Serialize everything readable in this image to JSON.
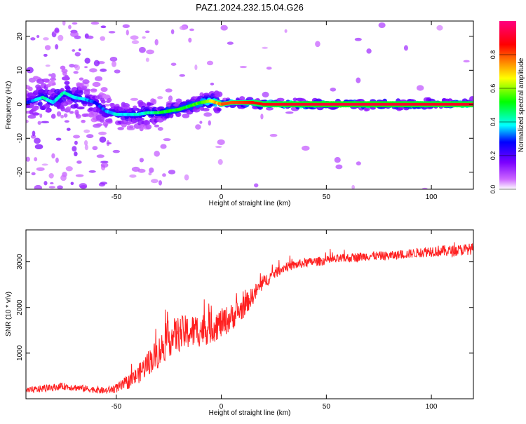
{
  "page": {
    "title": "PAZ1.2024.232.15.04.G26"
  },
  "chart_data": [
    {
      "type": "heatmap",
      "title": "PAZ1.2024.232.15.04.G26",
      "xlabel": "Height of straight line (km)",
      "ylabel": "Frequency (Hz)",
      "xlim": [
        -93,
        120
      ],
      "ylim": [
        -25,
        24.5
      ],
      "x_ticks": [
        -50,
        0,
        50,
        100
      ],
      "y_ticks": [
        -20,
        -10,
        0,
        10,
        20
      ],
      "grid": false,
      "colorbar": {
        "label": "Normalized spectral amplitude",
        "range": [
          0,
          1
        ],
        "ticks": [
          0.0,
          0.2,
          0.4,
          0.6,
          0.8
        ],
        "colors": [
          "#ffffff",
          "#cc66ff",
          "#7a00ff",
          "#0000ff",
          "#00ffff",
          "#00ff00",
          "#ffff00",
          "#ff8000",
          "#ff0000",
          "#ff0080"
        ]
      },
      "ridge": [
        {
          "x": -90,
          "f": 1.0,
          "a": 0.35
        },
        {
          "x": -85,
          "f": 2.0,
          "a": 0.45
        },
        {
          "x": -80,
          "f": 0.5,
          "a": 0.4
        },
        {
          "x": -75,
          "f": 3.5,
          "a": 0.45
        },
        {
          "x": -70,
          "f": 2.0,
          "a": 0.42
        },
        {
          "x": -65,
          "f": 1.5,
          "a": 0.4
        },
        {
          "x": -60,
          "f": 0.5,
          "a": 0.3
        },
        {
          "x": -55,
          "f": -2.0,
          "a": 0.35
        },
        {
          "x": -50,
          "f": -3.0,
          "a": 0.42
        },
        {
          "x": -45,
          "f": -3.0,
          "a": 0.42
        },
        {
          "x": -40,
          "f": -3.0,
          "a": 0.42
        },
        {
          "x": -35,
          "f": -2.5,
          "a": 0.45
        },
        {
          "x": -30,
          "f": -2.5,
          "a": 0.5
        },
        {
          "x": -25,
          "f": -2.0,
          "a": 0.55
        },
        {
          "x": -20,
          "f": -1.5,
          "a": 0.55
        },
        {
          "x": -15,
          "f": -0.5,
          "a": 0.55
        },
        {
          "x": -10,
          "f": 0.5,
          "a": 0.6
        },
        {
          "x": -5,
          "f": 1.0,
          "a": 0.7
        },
        {
          "x": 0,
          "f": 0.0,
          "a": 0.8
        },
        {
          "x": 5,
          "f": 0.5,
          "a": 0.8
        },
        {
          "x": 10,
          "f": 0.5,
          "a": 0.82
        },
        {
          "x": 15,
          "f": 0.5,
          "a": 0.85
        },
        {
          "x": 20,
          "f": 0.0,
          "a": 0.88
        },
        {
          "x": 30,
          "f": 0.0,
          "a": 0.9
        },
        {
          "x": 50,
          "f": 0.0,
          "a": 0.92
        },
        {
          "x": 75,
          "f": 0.0,
          "a": 0.92
        },
        {
          "x": 100,
          "f": 0.0,
          "a": 0.9
        },
        {
          "x": 120,
          "f": 0.0,
          "a": 0.9
        }
      ]
    },
    {
      "type": "line",
      "xlabel": "Height of straight line (km)",
      "ylabel": "SNR (10 * v/v)",
      "xlim": [
        -93,
        120
      ],
      "ylim": [
        0,
        3700
      ],
      "x_ticks": [
        -50,
        0,
        50,
        100
      ],
      "y_ticks": [
        1000,
        2000,
        3000
      ],
      "grid": false,
      "color": "#ff0000",
      "series": [
        {
          "x": [
            -93,
            -85,
            -75,
            -65,
            -55,
            -50,
            -45,
            -40,
            -35,
            -30,
            -25,
            -20,
            -15,
            -10,
            -5,
            0,
            5,
            10,
            15,
            20,
            25,
            30,
            40,
            50,
            60,
            70,
            80,
            90,
            100,
            110,
            120
          ],
          "values": [
            150,
            200,
            250,
            200,
            150,
            200,
            300,
            450,
            700,
            900,
            1200,
            1300,
            1350,
            1400,
            1450,
            1550,
            1700,
            1900,
            2200,
            2500,
            2700,
            2850,
            2950,
            3000,
            3050,
            3100,
            3100,
            3150,
            3200,
            3200,
            3250
          ],
          "noise": [
            150,
            150,
            150,
            150,
            150,
            200,
            300,
            400,
            550,
            700,
            800,
            800,
            750,
            750,
            700,
            650,
            600,
            500,
            400,
            300,
            250,
            200,
            200,
            200,
            200,
            200,
            200,
            200,
            250,
            250,
            250
          ]
        }
      ]
    }
  ]
}
